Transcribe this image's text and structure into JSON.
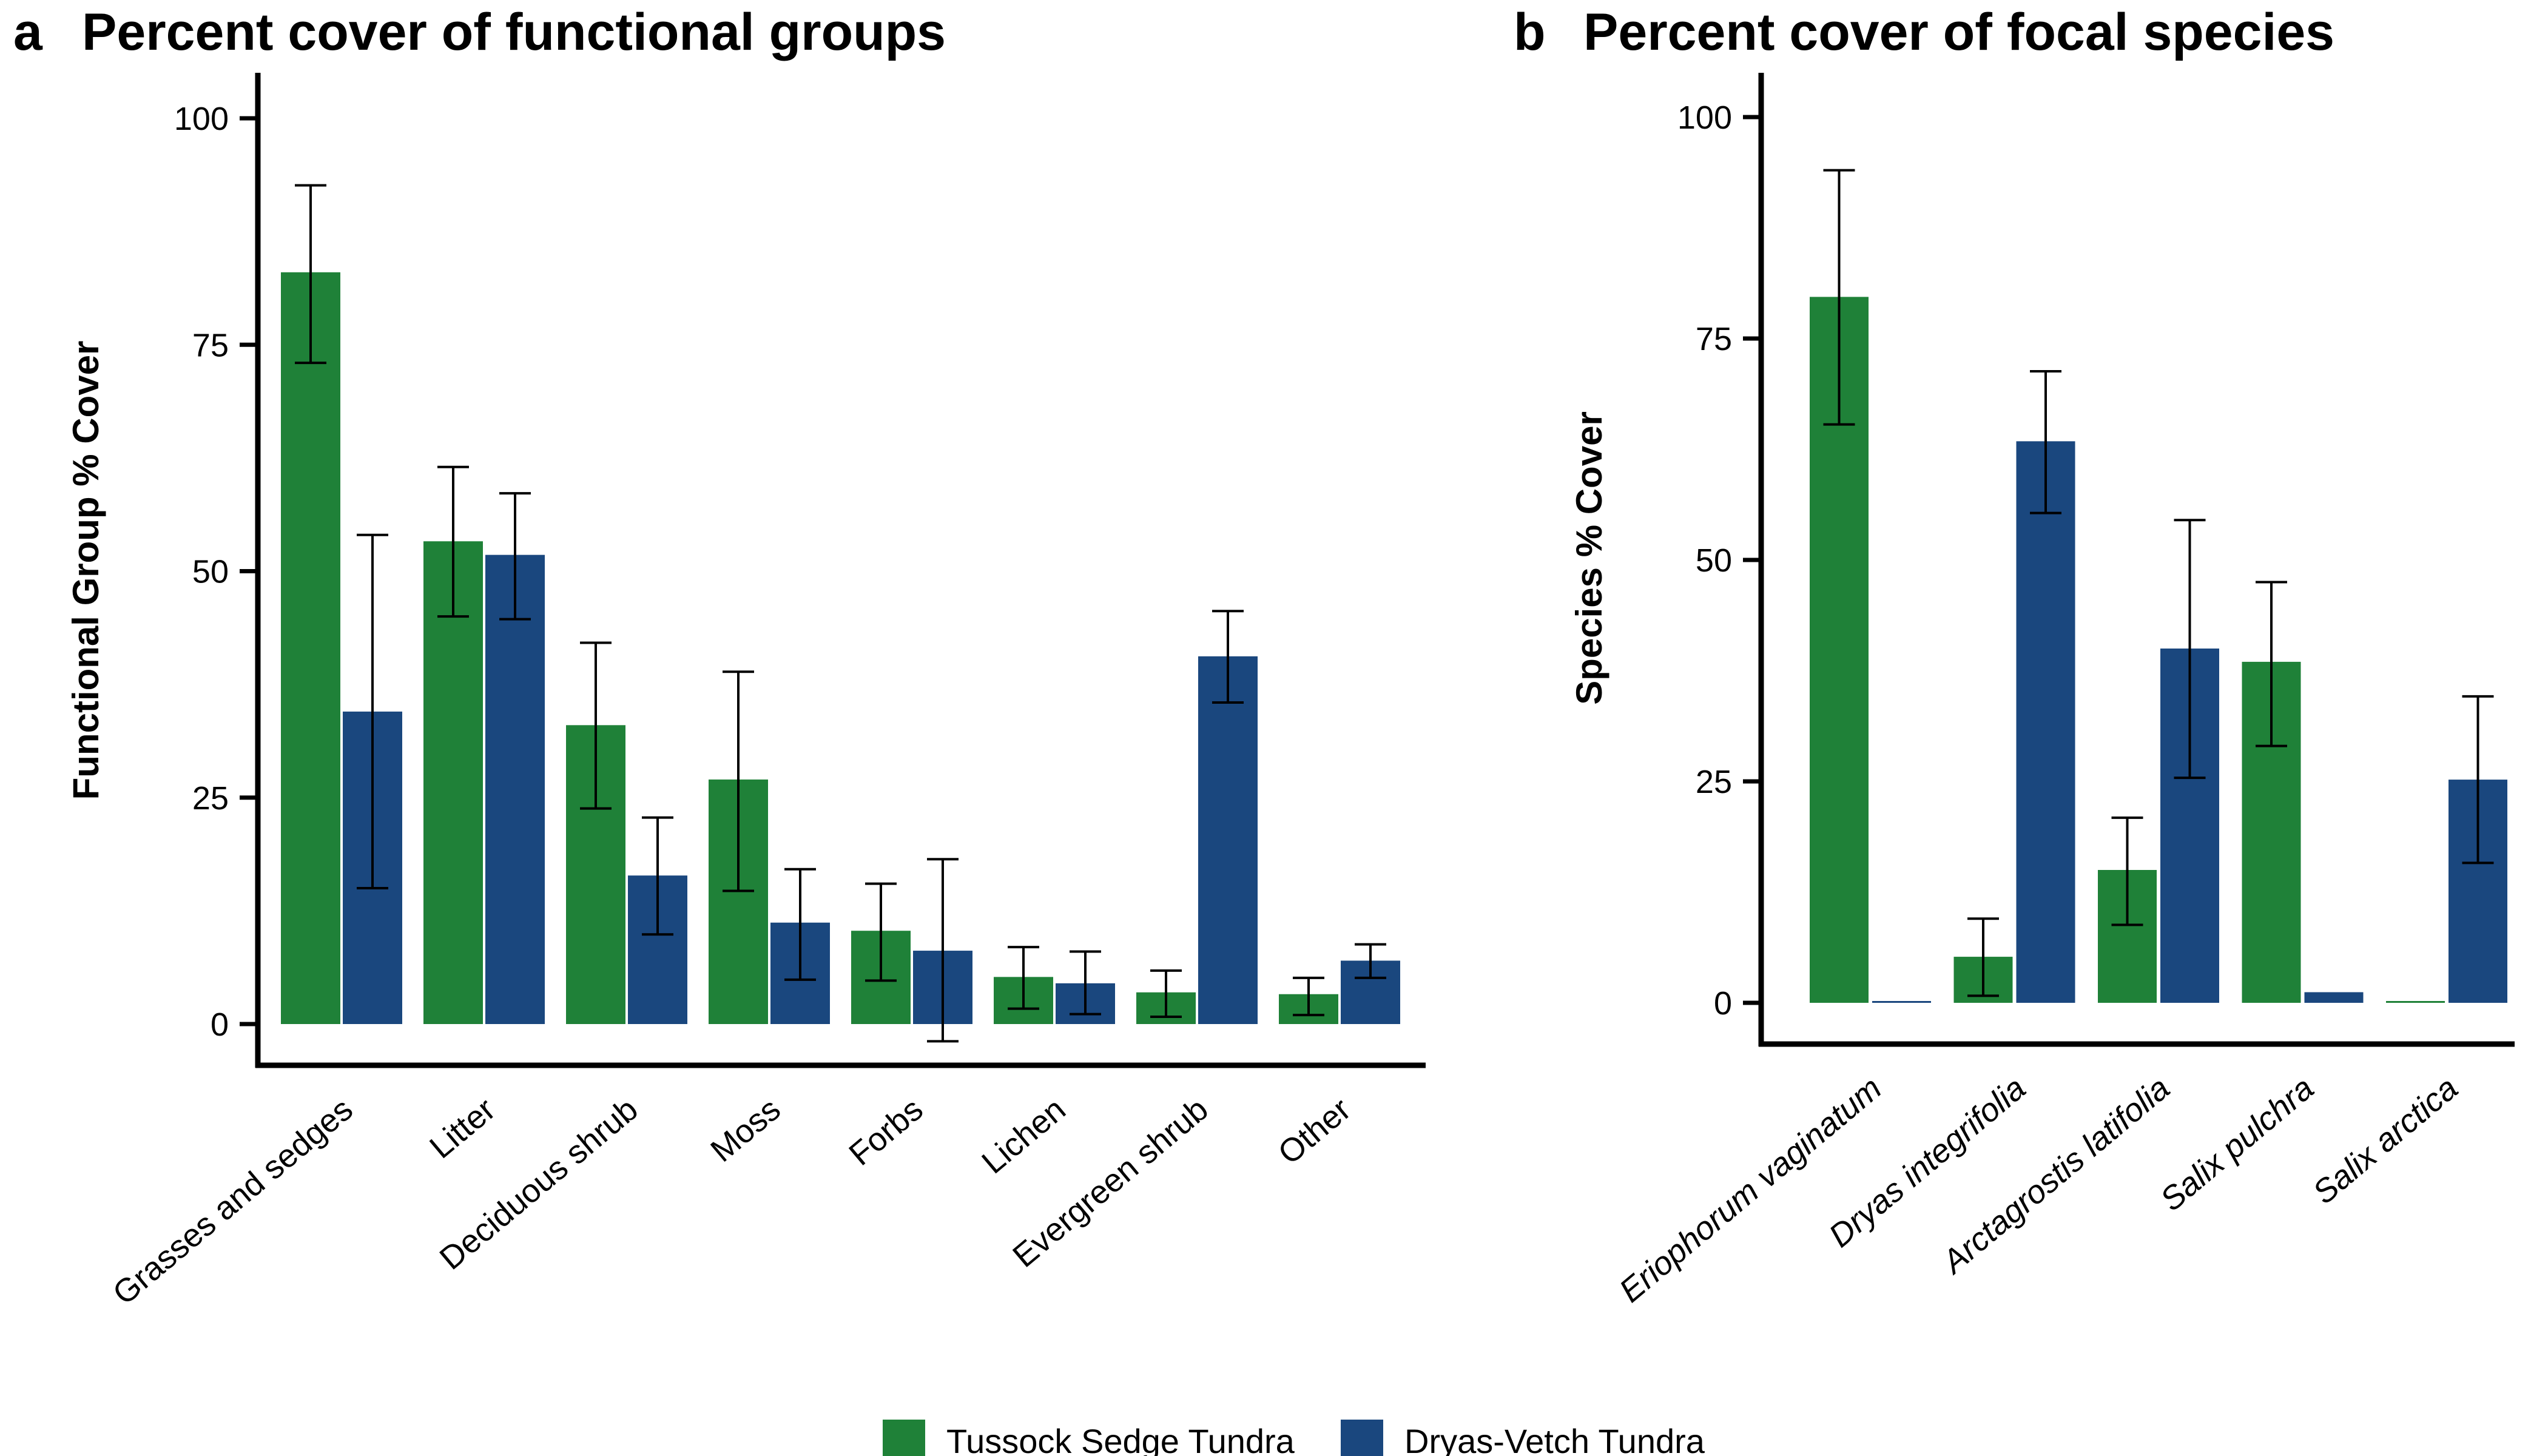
{
  "legend": {
    "items": [
      {
        "label": "Tussock Sedge Tundra",
        "color": "#1f8138"
      },
      {
        "label": "Dryas-Vetch Tundra",
        "color": "#1a477e"
      }
    ]
  },
  "chart_data": [
    {
      "panel_letter": "a",
      "type": "bar",
      "title": "Percent cover of functional groups",
      "xlabel": "",
      "ylabel": "Functional Group % Cover",
      "ylim": [
        -5,
        100
      ],
      "yticks": [
        0,
        25,
        50,
        75,
        100
      ],
      "italic_categories": false,
      "categories": [
        "Grasses and sedges",
        "Litter",
        "Deciduous shrub",
        "Moss",
        "Forbs",
        "Lichen",
        "Evergreen shrub",
        "Other"
      ],
      "series": [
        {
          "name": "Tussock Sedge Tundra",
          "color": "#1f8138",
          "values": [
            83,
            53.3,
            33,
            27,
            10.3,
            5.2,
            3.5,
            3.3
          ],
          "err_low": [
            73,
            45,
            23.8,
            14.7,
            4.8,
            1.7,
            0.8,
            1
          ],
          "err_high": [
            92.6,
            61.5,
            42.1,
            38.9,
            15.5,
            8.5,
            5.9,
            5.1
          ]
        },
        {
          "name": "Dryas-Vetch Tundra",
          "color": "#1a477e",
          "values": [
            34.5,
            51.8,
            16.4,
            11.2,
            8.1,
            4.5,
            40.6,
            7
          ],
          "err_low": [
            15,
            44.7,
            9.9,
            4.9,
            -1.9,
            1.1,
            35.5,
            5.1
          ],
          "err_high": [
            54,
            58.6,
            22.8,
            17.1,
            18.2,
            8,
            45.6,
            8.8
          ]
        }
      ]
    },
    {
      "panel_letter": "b",
      "type": "bar",
      "title": "Percent cover of focal species",
      "xlabel": "",
      "ylabel": "Species % Cover",
      "ylim": [
        -5,
        105
      ],
      "yticks": [
        0,
        25,
        50,
        75,
        100
      ],
      "italic_categories": true,
      "categories": [
        "Eriophorum vaginatum",
        "Dryas integrifolia",
        "Arctagrostis latifolia",
        "Salix pulchra",
        "Salix arctica"
      ],
      "series": [
        {
          "name": "Tussock Sedge Tundra",
          "color": "#1f8138",
          "values": [
            79.7,
            5.2,
            15,
            38.5,
            0.2
          ],
          "err_low": [
            65.3,
            0.8,
            8.8,
            29,
            0.2
          ],
          "err_high": [
            94,
            9.5,
            20.9,
            47.5,
            0.2
          ]
        },
        {
          "name": "Dryas-Vetch Tundra",
          "color": "#1a477e",
          "values": [
            0.2,
            63.4,
            40,
            1.2,
            25.2
          ],
          "err_low": [
            0.2,
            55.3,
            25.4,
            1.2,
            15.8
          ],
          "err_high": [
            0.2,
            71.3,
            54.5,
            1.2,
            34.6
          ]
        }
      ]
    }
  ]
}
